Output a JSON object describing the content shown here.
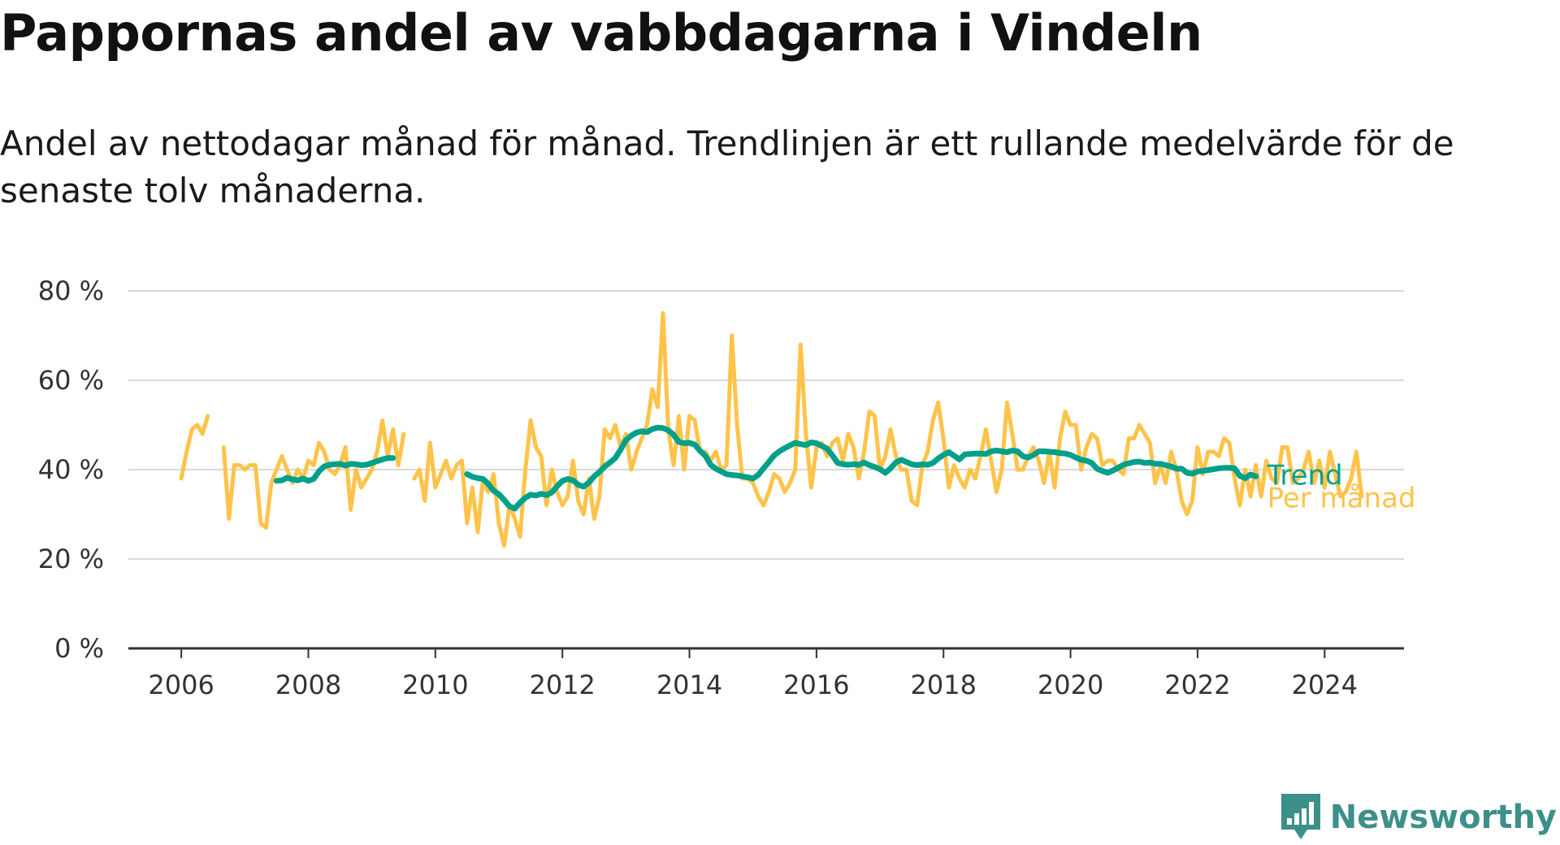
{
  "title": "Pappornas andel av vabbdagarna i Vindeln",
  "subtitle": "Andel av nettodagar månad för månad. Trendlinjen är ett rullande medelvärde för de senaste tolv månaderna.",
  "brand": {
    "name": "Newsworthy",
    "color": "#3d8f8a"
  },
  "colors": {
    "monthly": "#ffc34a",
    "trend": "#00a08a",
    "grid": "#d9d9d9",
    "axis": "#333333"
  },
  "chart_data": {
    "type": "line",
    "xlabel": "",
    "ylabel": "",
    "x_ticks": [
      "2006",
      "2008",
      "2010",
      "2012",
      "2014",
      "2016",
      "2018",
      "2020",
      "2022",
      "2024"
    ],
    "y_ticks": [
      "0 %",
      "20 %",
      "40 %",
      "60 %",
      "80 %"
    ],
    "ylim": [
      0,
      80
    ],
    "xlim": [
      "2005-03",
      "2025-04"
    ],
    "grid": true,
    "series": [
      {
        "name": "Per månad",
        "unit": "%",
        "segments": [
          {
            "start": "2006-01",
            "values": [
              38,
              44,
              49,
              50,
              48,
              52
            ]
          },
          {
            "start": "2006-09",
            "values": [
              45,
              29,
              41,
              41,
              40,
              41,
              41,
              28,
              27,
              37,
              40,
              43,
              40,
              37,
              40,
              38,
              42,
              41,
              46,
              44,
              40,
              39,
              41,
              45,
              31,
              40,
              36,
              38,
              40,
              44,
              51,
              43,
              49,
              41,
              48
            ]
          },
          {
            "start": "2009-09",
            "values": [
              38,
              40,
              33,
              46,
              36,
              39,
              42,
              38,
              41,
              42,
              28,
              36,
              26,
              38,
              35,
              39,
              28,
              23,
              32,
              29,
              25,
              40,
              51,
              45,
              43,
              32,
              40,
              35,
              32,
              34,
              42,
              33,
              30,
              38,
              29,
              34,
              49,
              47,
              50,
              45,
              48,
              40,
              44,
              47,
              50,
              58,
              54,
              75,
              49,
              41,
              52,
              40,
              52,
              51,
              44,
              44,
              42,
              44,
              40,
              41,
              70,
              50,
              38,
              38,
              37,
              34,
              32,
              35,
              39,
              38,
              35,
              37,
              40,
              68,
              48,
              36,
              45,
              46,
              43,
              46,
              47,
              42,
              48,
              45,
              38,
              44,
              53,
              52,
              40,
              43,
              49,
              43,
              40,
              40,
              33,
              32,
              41,
              44,
              51,
              55,
              47,
              36,
              41,
              38,
              36,
              40,
              38,
              43,
              49,
              42,
              35,
              40,
              55,
              48,
              40,
              40,
              43,
              45,
              42,
              37,
              44,
              36,
              47,
              53,
              50,
              50,
              40,
              45,
              48,
              47,
              41,
              42,
              42,
              40,
              39,
              47,
              47,
              50,
              48,
              46,
              37,
              41,
              37,
              44,
              40,
              33,
              30,
              33,
              45,
              39,
              44,
              44,
              43,
              47,
              46,
              38,
              32,
              40,
              34,
              41,
              34,
              42,
              38,
              37,
              45,
              45,
              37,
              38,
              40,
              44,
              37,
              42,
              36,
              44,
              39,
              34,
              35,
              38,
              44,
              34
            ]
          }
        ]
      },
      {
        "name": "Trend",
        "unit": "%",
        "segments": [
          {
            "start": "2007-07",
            "values": [
              37.5,
              37.6,
              38.2,
              37.8,
              37.6,
              38,
              37.5,
              37.9,
              39.6,
              40.7,
              41.1,
              41.2,
              41.3,
              40.9,
              41.3,
              41.2,
              41,
              41.1,
              41.5,
              41.9,
              42.3,
              42.6,
              42.6
            ]
          },
          {
            "start": "2010-07",
            "values": [
              39,
              38.4,
              38.1,
              37.9,
              36.8,
              35.3,
              34.5,
              33.2,
              31.8,
              31.3,
              32.6,
              33.7,
              34.4,
              34.2,
              34.6,
              34.3,
              34.9,
              36.3,
              37.5,
              37.9,
              37.6,
              36.6,
              36.2,
              37.1,
              38.5,
              39.5,
              40.7,
              41.6,
              42.6,
              44.5,
              46.6,
              47.6,
              48.3,
              48.6,
              48.4,
              49.1,
              49.4,
              49.3,
              48.8,
              47.8,
              46.2,
              45.9,
              46,
              45.6,
              44.2,
              43.1,
              41.1,
              40.2,
              39.6,
              39,
              38.8,
              38.7,
              38.5,
              38.3,
              38,
              38.8,
              40.3,
              41.7,
              43.2,
              44.1,
              44.8,
              45.4,
              46,
              45.7,
              45.5,
              46.1,
              45.9,
              45.3,
              44.7,
              43.2,
              41.5,
              41.2,
              41.1,
              41.2,
              41.1,
              41.6,
              41,
              40.6,
              40.1,
              39.3,
              40.3,
              41.6,
              42.2,
              41.7,
              41.2,
              41,
              41.2,
              41.1,
              41.5,
              42.5,
              43.3,
              43.9,
              43.1,
              42.3,
              43.4,
              43.5,
              43.6,
              43.6,
              43.5,
              44.1,
              44.3,
              44.1,
              43.9,
              44.3,
              44.1,
              43,
              42.7,
              43.3,
              44.1,
              44.1,
              44,
              43.9,
              43.7,
              43.6,
              43.3,
              42.7,
              42.2,
              42,
              41.5,
              40.2,
              39.7,
              39.3,
              39.8,
              40.4,
              41.1,
              41.4,
              41.7,
              41.8,
              41.5,
              41.6,
              41.3,
              41.3,
              41,
              40.7,
              40.2,
              40.2,
              39.3,
              39.1,
              39.6,
              39.7,
              39.9,
              40.1,
              40.3,
              40.4,
              40.4,
              40.3,
              38.6,
              38.1,
              38.9,
              38.5
            ]
          }
        ]
      }
    ]
  }
}
